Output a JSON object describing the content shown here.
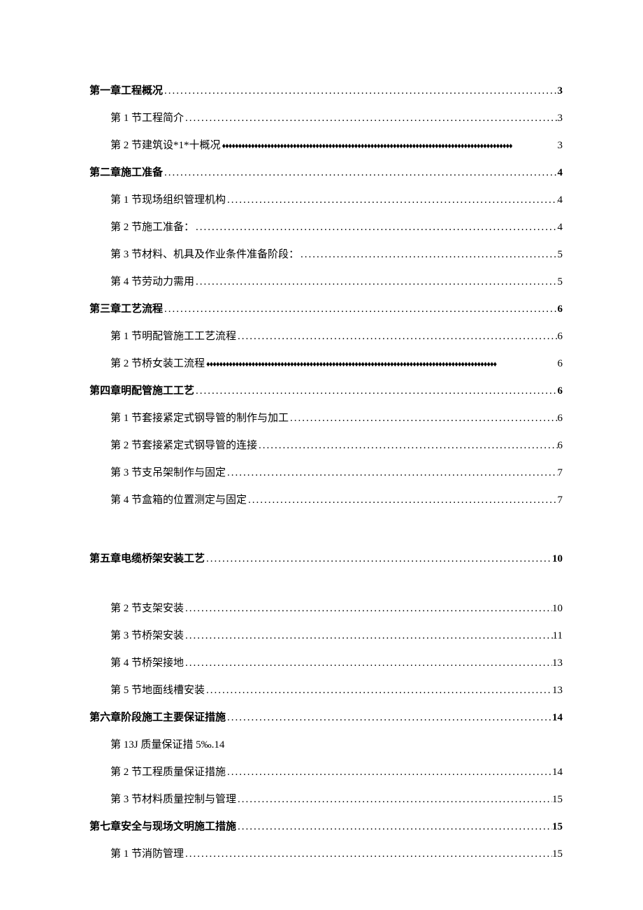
{
  "toc": [
    {
      "level": "chapter",
      "text": "第一章工程概况",
      "leader": "dots",
      "page": "3"
    },
    {
      "level": "section",
      "text": "第 1 节工程简介",
      "leader": "dots",
      "page": "3"
    },
    {
      "level": "section",
      "text": "第 2 节建筑设*1*十概况",
      "leader": "diamonds",
      "page": "3"
    },
    {
      "level": "chapter",
      "text": "第二章施工准备",
      "leader": "dots",
      "page": "4"
    },
    {
      "level": "section",
      "text": "第 1 节现场组织管理机构",
      "leader": "dots",
      "page": "4"
    },
    {
      "level": "section",
      "text": "第 2 节施工准备：",
      "leader": "dots",
      "page": "4"
    },
    {
      "level": "section",
      "text": "第 3 节材料、机具及作业条件准备阶段：",
      "leader": "dots",
      "page": "5"
    },
    {
      "level": "section",
      "text": "第 4 节劳动力需用",
      "leader": "dots",
      "page": "5"
    },
    {
      "level": "chapter",
      "text": "第三章工艺流程",
      "leader": "dots",
      "page": "6"
    },
    {
      "level": "section",
      "text": "第 1 节明配管施工工艺流程",
      "leader": "dots",
      "page": "6"
    },
    {
      "level": "section",
      "text": "第 2 节桥女装工流程",
      "leader": "diamonds",
      "page": "6"
    },
    {
      "level": "chapter",
      "text": "第四章明配管施工工艺",
      "leader": "dots",
      "page": "6"
    },
    {
      "level": "section",
      "text": "第 1 节套接紧定式钢导管的制作与加工",
      "leader": "dots",
      "page": "6"
    },
    {
      "level": "section",
      "text": "第 2 节套接紧定式钢导管的连接",
      "leader": "dots",
      "page": "6"
    },
    {
      "level": "section",
      "text": "第 3 节支吊架制作与固定",
      "leader": "dots",
      "page": "7"
    },
    {
      "level": "section",
      "text": "第 4 节盒箱的位置测定与固定",
      "leader": "dots",
      "page": "7"
    },
    {
      "level": "gap",
      "class": "gap-large"
    },
    {
      "level": "chapter",
      "text": "第五章电缆桥架安装工艺",
      "leader": "dots",
      "page": "10"
    },
    {
      "level": "gap",
      "class": "gap-medium"
    },
    {
      "level": "section",
      "text": "第 2 节支架安装",
      "leader": "dots",
      "page": "10"
    },
    {
      "level": "section",
      "text": "第 3 节桥架安装",
      "leader": "dots",
      "page": "11"
    },
    {
      "level": "section",
      "text": "第 4 节桥架接地",
      "leader": "dots",
      "page": "13"
    },
    {
      "level": "section",
      "text": "第 5 节地面线槽安装",
      "leader": "dots",
      "page": "13"
    },
    {
      "level": "chapter",
      "text": "第六章阶段施工主要保证措施",
      "leader": "dots",
      "page": "14"
    },
    {
      "level": "section",
      "text": "第 13J 质量保证措 5‰.14",
      "leader": "none",
      "page": ""
    },
    {
      "level": "section",
      "text": "第 2 节工程质量保证措施",
      "leader": "dots",
      "page": "14"
    },
    {
      "level": "section",
      "text": "第 3 节材料质量控制与管理",
      "leader": "dots",
      "page": "15"
    },
    {
      "level": "chapter",
      "text": "第七章安全与现场文明施工措施",
      "leader": "dots",
      "page": "15"
    },
    {
      "level": "section",
      "text": "第 1 节消防管理",
      "leader": "dots",
      "page": "15"
    }
  ]
}
